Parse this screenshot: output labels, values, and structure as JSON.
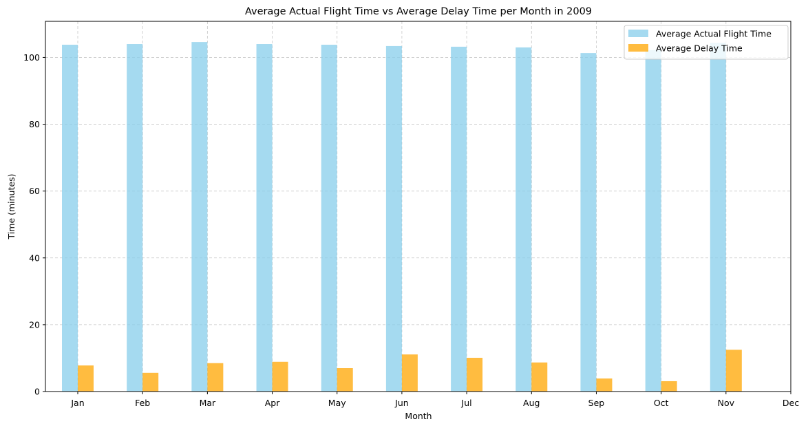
{
  "chart_data": {
    "type": "bar",
    "title": "Average Actual Flight Time vs Average Delay Time per Month in 2009",
    "xlabel": "Month",
    "ylabel": "Time (minutes)",
    "categories": [
      "Jan",
      "Feb",
      "Mar",
      "Apr",
      "May",
      "Jun",
      "Jul",
      "Aug",
      "Sep",
      "Oct",
      "Nov",
      "Dec"
    ],
    "series": [
      {
        "name": "Average Actual Flight Time",
        "color": "#87ceeb",
        "values": [
          103.8,
          104.0,
          104.6,
          104.0,
          103.8,
          103.4,
          103.2,
          103.0,
          101.3,
          102.2,
          104.4,
          null
        ]
      },
      {
        "name": "Average Delay Time",
        "color": "#ffa500",
        "values": [
          7.8,
          5.6,
          8.5,
          8.9,
          7.0,
          11.1,
          10.1,
          8.7,
          3.9,
          3.1,
          12.5,
          null
        ]
      }
    ],
    "ylim": [
      0,
      110.8
    ],
    "yticks": [
      0,
      20,
      40,
      60,
      80,
      100
    ],
    "grid": true,
    "legend_position": "upper right"
  }
}
